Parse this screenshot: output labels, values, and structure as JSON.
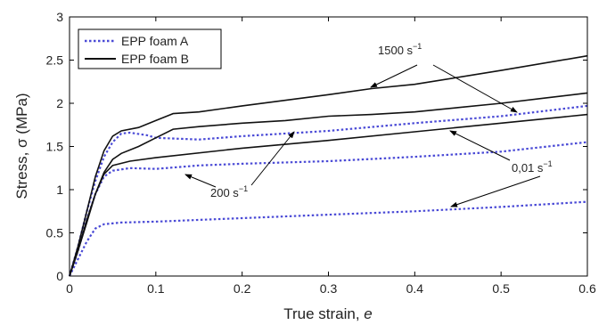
{
  "chart_data": {
    "type": "line",
    "xlabel_text": "True strain, ",
    "xlabel_var": "e",
    "ylabel": "Stress, σ (MPa)",
    "xlim": [
      0,
      0.6
    ],
    "ylim": [
      0,
      3
    ],
    "x_ticks": [
      "0",
      "0.1",
      "0.2",
      "0.3",
      "0.4",
      "0.5",
      "0.6"
    ],
    "y_ticks": [
      "0",
      "0.5",
      "1",
      "1.5",
      "2",
      "2.5",
      "3"
    ],
    "grid": false,
    "legend": {
      "placement": "top-left",
      "entries": [
        "EPP foam A",
        "EPP foam B"
      ]
    },
    "colors": {
      "foam_a": "#4a4ad6",
      "foam_b": "#111111"
    },
    "series": [
      {
        "name": "EPP foam A",
        "rate": "0.01 s-1",
        "style": "dotted",
        "points": [
          [
            0,
            0
          ],
          [
            0.01,
            0.2
          ],
          [
            0.02,
            0.4
          ],
          [
            0.03,
            0.55
          ],
          [
            0.04,
            0.6
          ],
          [
            0.06,
            0.62
          ],
          [
            0.1,
            0.63
          ],
          [
            0.2,
            0.67
          ],
          [
            0.3,
            0.71
          ],
          [
            0.4,
            0.75
          ],
          [
            0.5,
            0.8
          ],
          [
            0.6,
            0.86
          ]
        ]
      },
      {
        "name": "EPP foam A",
        "rate": "200 s-1",
        "style": "dotted",
        "points": [
          [
            0,
            0
          ],
          [
            0.01,
            0.3
          ],
          [
            0.02,
            0.65
          ],
          [
            0.03,
            0.95
          ],
          [
            0.04,
            1.15
          ],
          [
            0.05,
            1.22
          ],
          [
            0.07,
            1.25
          ],
          [
            0.1,
            1.24
          ],
          [
            0.15,
            1.28
          ],
          [
            0.2,
            1.3
          ],
          [
            0.3,
            1.33
          ],
          [
            0.4,
            1.38
          ],
          [
            0.5,
            1.44
          ],
          [
            0.6,
            1.55
          ]
        ]
      },
      {
        "name": "EPP foam A",
        "rate": "1500 s-1",
        "style": "dotted",
        "points": [
          [
            0,
            0
          ],
          [
            0.01,
            0.35
          ],
          [
            0.02,
            0.75
          ],
          [
            0.03,
            1.1
          ],
          [
            0.04,
            1.38
          ],
          [
            0.05,
            1.55
          ],
          [
            0.06,
            1.65
          ],
          [
            0.07,
            1.66
          ],
          [
            0.09,
            1.63
          ],
          [
            0.1,
            1.6
          ],
          [
            0.15,
            1.58
          ],
          [
            0.2,
            1.62
          ],
          [
            0.3,
            1.68
          ],
          [
            0.4,
            1.77
          ],
          [
            0.5,
            1.85
          ],
          [
            0.6,
            1.97
          ]
        ]
      },
      {
        "name": "EPP foam B",
        "rate": "0.01 s-1",
        "style": "solid",
        "points": [
          [
            0,
            0
          ],
          [
            0.01,
            0.3
          ],
          [
            0.02,
            0.65
          ],
          [
            0.03,
            0.95
          ],
          [
            0.04,
            1.18
          ],
          [
            0.05,
            1.28
          ],
          [
            0.07,
            1.33
          ],
          [
            0.1,
            1.37
          ],
          [
            0.2,
            1.48
          ],
          [
            0.3,
            1.57
          ],
          [
            0.4,
            1.67
          ],
          [
            0.5,
            1.77
          ],
          [
            0.6,
            1.87
          ]
        ]
      },
      {
        "name": "EPP foam B",
        "rate": "200 s-1",
        "style": "solid",
        "points": [
          [
            0,
            0
          ],
          [
            0.01,
            0.3
          ],
          [
            0.02,
            0.62
          ],
          [
            0.03,
            0.95
          ],
          [
            0.04,
            1.2
          ],
          [
            0.05,
            1.35
          ],
          [
            0.06,
            1.42
          ],
          [
            0.08,
            1.5
          ],
          [
            0.1,
            1.6
          ],
          [
            0.12,
            1.7
          ],
          [
            0.15,
            1.73
          ],
          [
            0.2,
            1.77
          ],
          [
            0.25,
            1.8
          ],
          [
            0.3,
            1.85
          ],
          [
            0.35,
            1.87
          ],
          [
            0.4,
            1.9
          ],
          [
            0.45,
            1.95
          ],
          [
            0.5,
            2.0
          ],
          [
            0.55,
            2.06
          ],
          [
            0.6,
            2.12
          ]
        ]
      },
      {
        "name": "EPP foam B",
        "rate": "1500 s-1",
        "style": "solid",
        "points": [
          [
            0,
            0
          ],
          [
            0.01,
            0.35
          ],
          [
            0.02,
            0.75
          ],
          [
            0.03,
            1.15
          ],
          [
            0.04,
            1.45
          ],
          [
            0.05,
            1.62
          ],
          [
            0.06,
            1.68
          ],
          [
            0.08,
            1.72
          ],
          [
            0.1,
            1.8
          ],
          [
            0.12,
            1.88
          ],
          [
            0.15,
            1.9
          ],
          [
            0.2,
            1.97
          ],
          [
            0.3,
            2.1
          ],
          [
            0.35,
            2.17
          ],
          [
            0.4,
            2.22
          ],
          [
            0.5,
            2.38
          ],
          [
            0.6,
            2.55
          ]
        ]
      }
    ],
    "annotations": [
      {
        "id": "ann-1500",
        "parts": [
          "1500 s",
          "−1"
        ]
      },
      {
        "id": "ann-200",
        "parts": [
          "200 s",
          "−1"
        ]
      },
      {
        "id": "ann-001",
        "parts": [
          "0,01 s",
          "−1"
        ]
      }
    ]
  }
}
